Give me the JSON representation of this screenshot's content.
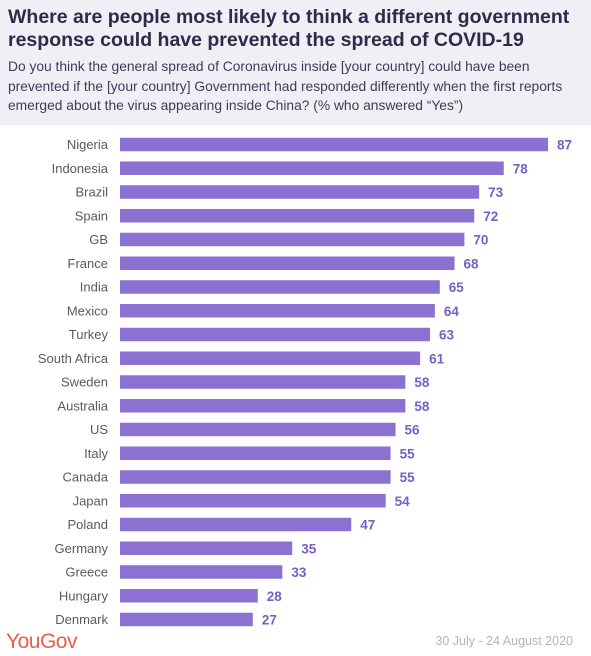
{
  "title": "Where are people most likely to think a different government response could have prevented the spread of COVID-19",
  "subtitle": "Do you think the general spread of Coronavirus inside [your country] could have been prevented if the [your country] Government had responded differently when the first reports emerged about the virus appearing inside China? (% who answered “Yes”)",
  "footer": {
    "logo": "YouGov",
    "dates": "30 July - 24 August 2020"
  },
  "colors": {
    "bar": "#8b71d2",
    "label": "#7660c4",
    "text": "#5a5a5a"
  },
  "chart_data": {
    "type": "bar",
    "orientation": "horizontal",
    "categories": [
      "Nigeria",
      "Indonesia",
      "Brazil",
      "Spain",
      "GB",
      "France",
      "India",
      "Mexico",
      "Turkey",
      "South Africa",
      "Sweden",
      "Australia",
      "US",
      "Italy",
      "Canada",
      "Japan",
      "Poland",
      "Germany",
      "Greece",
      "Hungary",
      "Denmark"
    ],
    "values": [
      87,
      78,
      73,
      72,
      70,
      68,
      65,
      64,
      63,
      61,
      58,
      58,
      56,
      55,
      55,
      54,
      47,
      35,
      33,
      28,
      27
    ],
    "xlim": [
      0,
      100
    ],
    "grid": false,
    "data_labels": true
  }
}
